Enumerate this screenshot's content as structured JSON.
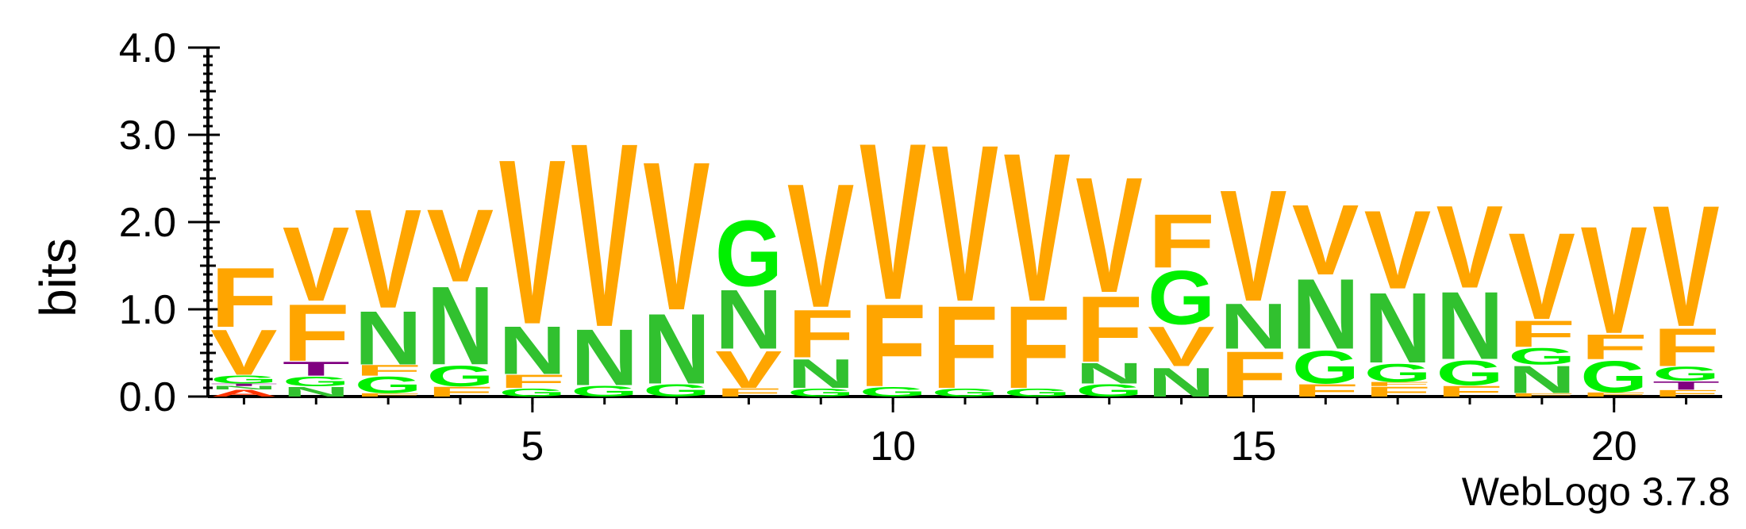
{
  "chart_data": {
    "type": "sequence-logo",
    "ylabel": "bits",
    "ylim": [
      0,
      4
    ],
    "yticks": [
      "0.0",
      "1.0",
      "2.0",
      "3.0",
      "4.0"
    ],
    "xtick_labels": [
      "5",
      "10",
      "15",
      "20"
    ],
    "xtick_positions": [
      5,
      10,
      15,
      20
    ],
    "credit": "WebLogo 3.7.8",
    "colors": {
      "F": "#ffa500",
      "V": "#ffa500",
      "N": "#31c12f",
      "G": "#00f000",
      "T": "#800080",
      "S": "#800080",
      "A": "#ff3300",
      "L": "#ffa500"
    },
    "positions": [
      {
        "pos": 1,
        "letters": [
          {
            "l": "A",
            "h": 0.08
          },
          {
            "l": "N",
            "h": 0.04
          },
          {
            "l": "T",
            "h": 0.03
          },
          {
            "l": "G",
            "h": 0.1
          },
          {
            "l": "V",
            "h": 0.55
          },
          {
            "l": "F",
            "h": 0.72
          }
        ]
      },
      {
        "pos": 2,
        "letters": [
          {
            "l": "N",
            "h": 0.12
          },
          {
            "l": "G",
            "h": 0.12
          },
          {
            "l": "T",
            "h": 0.17
          },
          {
            "l": "F",
            "h": 0.69
          },
          {
            "l": "V",
            "h": 0.9
          }
        ]
      },
      {
        "pos": 3,
        "letters": [
          {
            "l": "F",
            "h": 0.04
          },
          {
            "l": "G",
            "h": 0.2
          },
          {
            "l": "F",
            "h": 0.13
          },
          {
            "l": "N",
            "h": 0.65
          },
          {
            "l": "V",
            "h": 1.2
          }
        ]
      },
      {
        "pos": 4,
        "letters": [
          {
            "l": "F",
            "h": 0.12
          },
          {
            "l": "G",
            "h": 0.25
          },
          {
            "l": "N",
            "h": 0.95
          },
          {
            "l": "V",
            "h": 0.88
          }
        ]
      },
      {
        "pos": 5,
        "letters": [
          {
            "l": "G",
            "h": 0.1
          },
          {
            "l": "F",
            "h": 0.16
          },
          {
            "l": "N",
            "h": 0.58
          },
          {
            "l": "V",
            "h": 2.0
          }
        ]
      },
      {
        "pos": 6,
        "letters": [
          {
            "l": "G",
            "h": 0.13
          },
          {
            "l": "N",
            "h": 0.68
          },
          {
            "l": "V",
            "h": 2.23
          }
        ]
      },
      {
        "pos": 7,
        "letters": [
          {
            "l": "G",
            "h": 0.15
          },
          {
            "l": "N",
            "h": 0.85
          },
          {
            "l": "V",
            "h": 1.8
          }
        ]
      },
      {
        "pos": 8,
        "letters": [
          {
            "l": "F",
            "h": 0.1
          },
          {
            "l": "V",
            "h": 0.45
          },
          {
            "l": "N",
            "h": 0.72
          },
          {
            "l": "G",
            "h": 0.8
          }
        ]
      },
      {
        "pos": 9,
        "letters": [
          {
            "l": "G",
            "h": 0.1
          },
          {
            "l": "N",
            "h": 0.35
          },
          {
            "l": "F",
            "h": 0.58
          },
          {
            "l": "V",
            "h": 1.5
          }
        ]
      },
      {
        "pos": 10,
        "letters": [
          {
            "l": "G",
            "h": 0.12
          },
          {
            "l": "F",
            "h": 1.0
          },
          {
            "l": "V",
            "h": 1.9
          }
        ]
      },
      {
        "pos": 11,
        "letters": [
          {
            "l": "G",
            "h": 0.1
          },
          {
            "l": "F",
            "h": 1.0
          },
          {
            "l": "V",
            "h": 1.9
          }
        ]
      },
      {
        "pos": 12,
        "letters": [
          {
            "l": "G",
            "h": 0.1
          },
          {
            "l": "F",
            "h": 1.0
          },
          {
            "l": "V",
            "h": 1.8
          }
        ]
      },
      {
        "pos": 13,
        "letters": [
          {
            "l": "G",
            "h": 0.15
          },
          {
            "l": "N",
            "h": 0.25
          },
          {
            "l": "F",
            "h": 0.8
          },
          {
            "l": "V",
            "h": 1.4
          }
        ]
      },
      {
        "pos": 14,
        "letters": [
          {
            "l": "N",
            "h": 0.35
          },
          {
            "l": "V",
            "h": 0.48
          },
          {
            "l": "G",
            "h": 0.65
          },
          {
            "l": "F",
            "h": 0.65
          }
        ]
      },
      {
        "pos": 15,
        "letters": [
          {
            "l": "F",
            "h": 0.55
          },
          {
            "l": "N",
            "h": 0.55
          },
          {
            "l": "V",
            "h": 1.35
          }
        ]
      },
      {
        "pos": 16,
        "letters": [
          {
            "l": "F",
            "h": 0.15
          },
          {
            "l": "G",
            "h": 0.4
          },
          {
            "l": "N",
            "h": 0.85
          },
          {
            "l": "V",
            "h": 0.85
          }
        ]
      },
      {
        "pos": 17,
        "letters": [
          {
            "l": "F",
            "h": 0.12
          },
          {
            "l": "F",
            "h": 0.05
          },
          {
            "l": "G",
            "h": 0.22
          },
          {
            "l": "N",
            "h": 0.85
          },
          {
            "l": "V",
            "h": 0.95
          }
        ]
      },
      {
        "pos": 18,
        "letters": [
          {
            "l": "F",
            "h": 0.13
          },
          {
            "l": "G",
            "h": 0.3
          },
          {
            "l": "N",
            "h": 0.82
          },
          {
            "l": "V",
            "h": 1.0
          }
        ]
      },
      {
        "pos": 19,
        "letters": [
          {
            "l": "F",
            "h": 0.04
          },
          {
            "l": "N",
            "h": 0.33
          },
          {
            "l": "G",
            "h": 0.2
          },
          {
            "l": "F",
            "h": 0.32
          },
          {
            "l": "V",
            "h": 1.05
          }
        ]
      },
      {
        "pos": 20,
        "letters": [
          {
            "l": "F",
            "h": 0.05
          },
          {
            "l": "G",
            "h": 0.38
          },
          {
            "l": "F",
            "h": 0.3
          },
          {
            "l": "V",
            "h": 1.3
          }
        ]
      },
      {
        "pos": 21,
        "letters": [
          {
            "l": "F",
            "h": 0.08
          },
          {
            "l": "T",
            "h": 0.1
          },
          {
            "l": "G",
            "h": 0.17
          },
          {
            "l": "F",
            "h": 0.46
          },
          {
            "l": "V",
            "h": 1.47
          }
        ]
      }
    ]
  }
}
